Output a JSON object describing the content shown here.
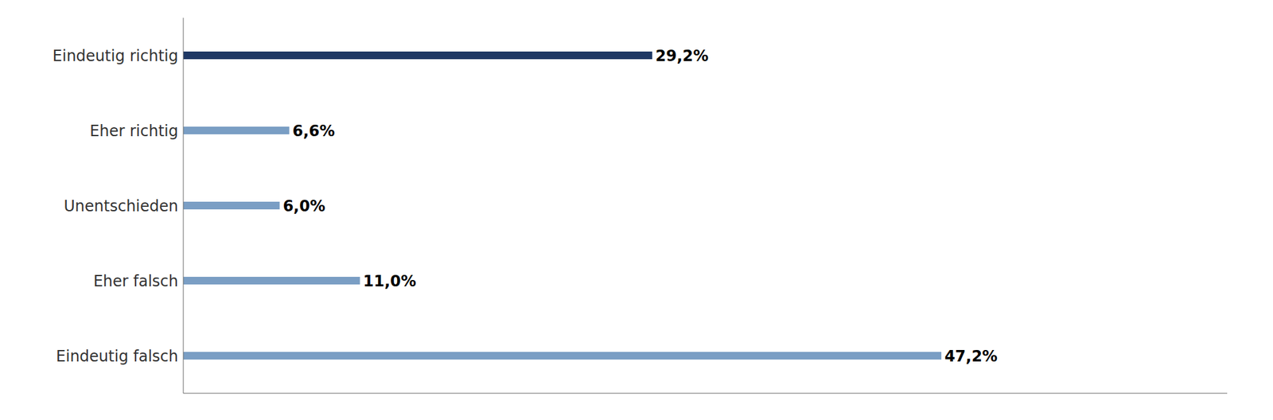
{
  "chart_data": {
    "type": "bar",
    "orientation": "horizontal",
    "categories": [
      "Eindeutig falsch",
      "Eher falsch",
      "Unentschieden",
      "Eher richtig",
      "Eindeutig richtig"
    ],
    "values": [
      47.2,
      11.0,
      6.0,
      6.6,
      29.2
    ],
    "value_labels": [
      "47,2%",
      "11,0%",
      "6,0%",
      "6,6%",
      "29,2%"
    ],
    "data_labels": true,
    "colors": [
      "#7a9ec4",
      "#7a9ec4",
      "#7a9ec4",
      "#7a9ec4",
      "#1f3864"
    ],
    "xlim": [
      0,
      65
    ],
    "tick_labels": "y",
    "grid": false
  }
}
